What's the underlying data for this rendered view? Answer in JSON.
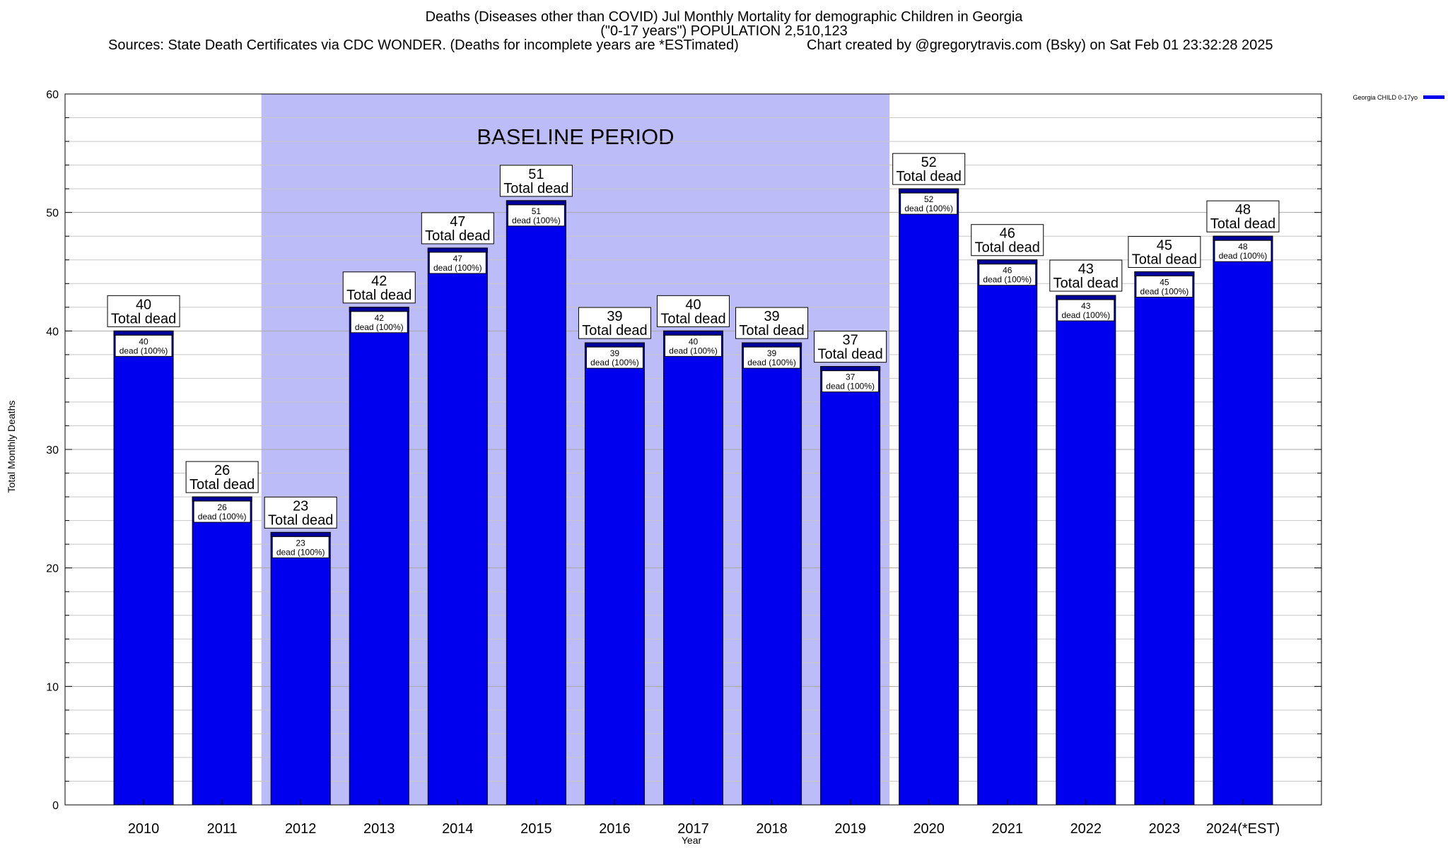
{
  "header": {
    "title_line1": "Deaths (Diseases other than COVID) Jul Monthly Mortality for demographic Children in Georgia",
    "title_line2": "(\"0-17 years\") POPULATION 2,510,123",
    "sources": "Sources: State Death Certificates via CDC WONDER. (Deaths for incomplete years are *ESTimated)",
    "credit": "Chart created by @gregorytravis.com (Bsky) on Sat Feb 01 23:32:28 2025"
  },
  "chart_data": {
    "type": "bar",
    "title": "Deaths (Diseases other than COVID) Jul Monthly Mortality for demographic Children in Georgia",
    "xlabel": "Year",
    "ylabel": "Total Monthly Deaths",
    "ylim": [
      0,
      60
    ],
    "yticks": [
      0,
      10,
      20,
      30,
      40,
      50,
      60
    ],
    "grid": true,
    "legend_position": "top-right",
    "categories": [
      "2010",
      "2011",
      "2012",
      "2013",
      "2014",
      "2015",
      "2016",
      "2017",
      "2018",
      "2019",
      "2020",
      "2021",
      "2022",
      "2023",
      "2024(*EST)"
    ],
    "series": [
      {
        "name": "Georgia CHILD 0-17yo",
        "color": "#0000ee",
        "values": [
          40,
          26,
          23,
          42,
          47,
          51,
          39,
          40,
          39,
          37,
          52,
          46,
          43,
          45,
          48
        ]
      }
    ],
    "top_label_suffix": "Total dead",
    "inner_label_suffix": "dead (100%)",
    "baseline": {
      "label": "BASELINE PERIOD",
      "from": "2012",
      "to": "2019",
      "color": "#bcbcf9"
    }
  }
}
